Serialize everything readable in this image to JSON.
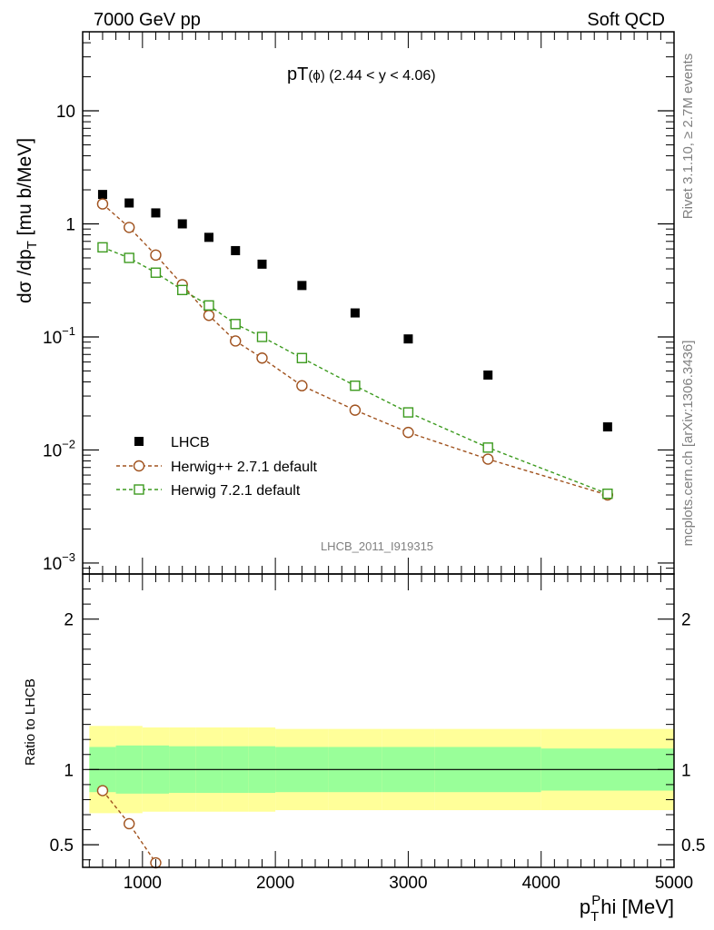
{
  "header": {
    "left": "7000 GeV pp",
    "right": "Soft QCD"
  },
  "side_labels": {
    "rivet": "Rivet 3.1.10, ≥ 2.7M events",
    "mcplots": "mcplots.cern.ch [arXiv:1306.3436]"
  },
  "watermark": "LHCB_2011_I919315",
  "colors": {
    "data": "#000000",
    "herwigpp": "#a0521e",
    "herwig7": "#3c9a1e",
    "band_inner": "#99ff99",
    "band_outer": "#ffff99"
  },
  "chart_data": [
    {
      "type": "scatter",
      "title": "pT(ϕ) (2.44 < y < 4.06)",
      "title_parts": {
        "main": "pT",
        "paren": "(ϕ)",
        "rest": " (2.44 < y < 4.06)"
      },
      "ylabel": "dσ /dp_T [mu b/MeV]",
      "ylabel_parts": {
        "main": "dσ /dp",
        "sub": "T",
        "rest": " [mu b/MeV]"
      },
      "xlim": [
        550,
        5000
      ],
      "ylim": [
        0.0008,
        50
      ],
      "yscale": "log",
      "ytick_values": [
        0.001,
        0.01,
        0.1,
        1,
        10
      ],
      "ytick_labels": [
        {
          "base": "10",
          "exp": "−3"
        },
        {
          "base": "10",
          "exp": "−2"
        },
        {
          "base": "10",
          "exp": "−1"
        },
        {
          "base": "1",
          "exp": ""
        },
        {
          "base": "10",
          "exp": ""
        }
      ],
      "legend": {
        "placement": "lower-left",
        "entries": [
          "LHCB",
          "Herwig++ 2.7.1 default",
          "Herwig 7.2.1 default"
        ]
      },
      "series": [
        {
          "name": "LHCB",
          "marker": "filled-square",
          "x": [
            700,
            900,
            1100,
            1300,
            1500,
            1700,
            1900,
            2200,
            2600,
            3000,
            3600,
            4500
          ],
          "values": [
            1.82,
            1.53,
            1.25,
            1.0,
            0.76,
            0.58,
            0.44,
            0.285,
            0.163,
            0.096,
            0.046,
            0.016
          ]
        },
        {
          "name": "Herwig++ 2.7.1 default",
          "marker": "open-circle",
          "x": [
            700,
            900,
            1100,
            1300,
            1500,
            1700,
            1900,
            2200,
            2600,
            3000,
            3600,
            4500
          ],
          "values": [
            1.5,
            0.93,
            0.53,
            0.29,
            0.155,
            0.092,
            0.065,
            0.037,
            0.0225,
            0.0143,
            0.0083,
            0.004
          ]
        },
        {
          "name": "Herwig 7.2.1 default",
          "marker": "open-square",
          "x": [
            700,
            900,
            1100,
            1300,
            1500,
            1700,
            1900,
            2200,
            2600,
            3000,
            3600,
            4500
          ],
          "values": [
            0.62,
            0.5,
            0.37,
            0.26,
            0.19,
            0.13,
            0.1,
            0.065,
            0.037,
            0.0215,
            0.0105,
            0.0041
          ]
        }
      ]
    },
    {
      "type": "scatter",
      "xlabel": "p_T^Phi [MeV]",
      "xlabel_parts": {
        "main": "p",
        "sub": "T",
        "sup": "P",
        "rest": "hi [MeV]"
      },
      "ylabel": "Ratio to LHCB",
      "xlim": [
        550,
        5000
      ],
      "ylim": [
        0.35,
        2.3
      ],
      "xtick_values": [
        1000,
        2000,
        3000,
        4000,
        5000
      ],
      "xtick_labels": [
        "1000",
        "2000",
        "3000",
        "4000",
        "5000"
      ],
      "ytick_values": [
        0.5,
        1,
        2
      ],
      "ytick_labels": [
        "0.5",
        "1",
        "2"
      ],
      "uncertainty_band": {
        "x_edges": [
          600,
          800,
          1000,
          1200,
          1400,
          1600,
          1800,
          2000,
          2400,
          2800,
          3200,
          4000,
          5000
        ],
        "inner": [
          0.15,
          0.16,
          0.16,
          0.155,
          0.155,
          0.155,
          0.155,
          0.15,
          0.15,
          0.15,
          0.15,
          0.14
        ],
        "outer": [
          0.29,
          0.29,
          0.28,
          0.28,
          0.28,
          0.28,
          0.28,
          0.27,
          0.27,
          0.27,
          0.27,
          0.27
        ]
      },
      "series": [
        {
          "name": "Herwig++ 2.7.1 default",
          "marker": "open-circle",
          "x": [
            700,
            900,
            1100
          ],
          "values": [
            0.86,
            0.64,
            0.38
          ]
        }
      ]
    }
  ]
}
